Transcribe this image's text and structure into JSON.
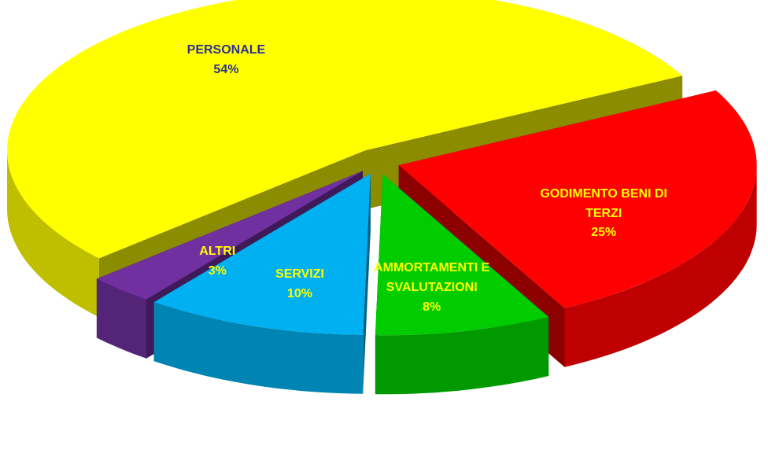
{
  "chart_data": {
    "type": "pie3d",
    "categories": [
      "PERSONALE",
      "GODIMENTO BENI DI TERZI",
      "AMMORTAMENTI E SVALUTAZIONI",
      "SERVIZI",
      "ALTRI"
    ],
    "values": [
      54,
      25,
      8,
      10,
      3
    ],
    "value_labels": [
      "54%",
      "25%",
      "8%",
      "10%",
      "3%"
    ],
    "colors": [
      "#ffff00",
      "#ff0000",
      "#00cc00",
      "#00b0f0",
      "#7030a0"
    ],
    "label_colors": [
      "#2e3192",
      "#ffff00",
      "#ffff00",
      "#ffff00",
      "#ffff00"
    ]
  }
}
